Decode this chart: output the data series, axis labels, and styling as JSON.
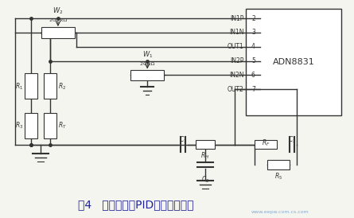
{
  "title": "图4   差分放大与PID补偿部分电路",
  "watermark": "www.eepw.com.cs.com",
  "bg_color": "#f5f5f0",
  "line_color": "#333333",
  "adn_label": "ADN8831",
  "pins": [
    {
      "label": "IN1P",
      "pin": "2",
      "fy": 0.88
    },
    {
      "label": "IN1N",
      "pin": "3",
      "fy": 0.79
    },
    {
      "label": "OUT1",
      "pin": "4",
      "fy": 0.7
    },
    {
      "label": "IN2P",
      "pin": "5",
      "fy": 0.615
    },
    {
      "label": "IN2N",
      "pin": "6",
      "fy": 0.535
    },
    {
      "label": "OUT2",
      "pin": "7",
      "fy": 0.455
    }
  ]
}
